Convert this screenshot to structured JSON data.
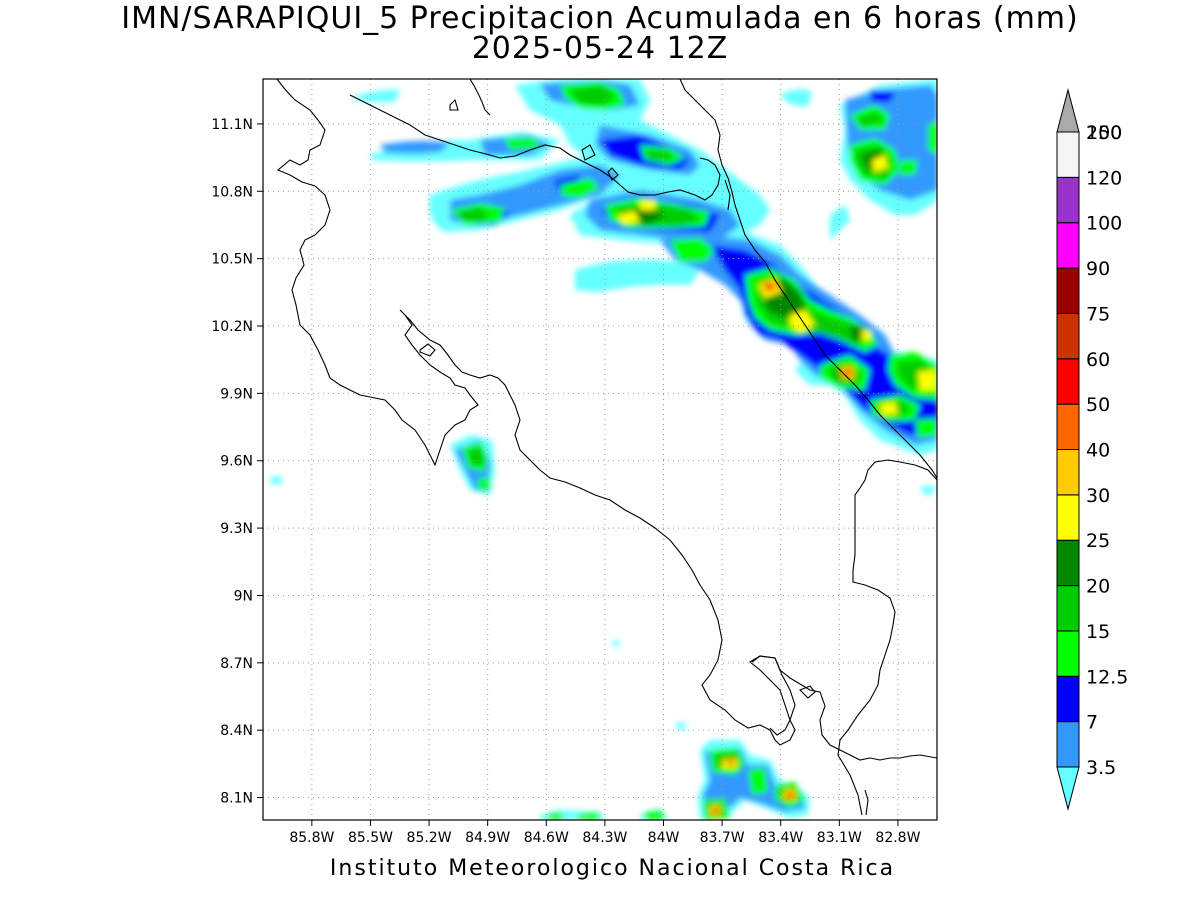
{
  "title": {
    "line1": "IMN/SARAPIQUI_5 Precipitacion Acumulada en 6 horas (mm)",
    "line2": "2025-05-24 12Z"
  },
  "footer": "Instituto Meteorologico Nacional Costa Rica",
  "map": {
    "lon_range": [
      -86.05,
      -82.6
    ],
    "lat_range": [
      8.0,
      11.3
    ],
    "grid": true,
    "lat_ticks": [
      {
        "value": 11.1,
        "label": "11.1N"
      },
      {
        "value": 10.8,
        "label": "10.8N"
      },
      {
        "value": 10.5,
        "label": "10.5N"
      },
      {
        "value": 10.2,
        "label": "10.2N"
      },
      {
        "value": 9.9,
        "label": "9.9N"
      },
      {
        "value": 9.6,
        "label": "9.6N"
      },
      {
        "value": 9.3,
        "label": "9.3N"
      },
      {
        "value": 9.0,
        "label": "9N"
      },
      {
        "value": 8.7,
        "label": "8.7N"
      },
      {
        "value": 8.4,
        "label": "8.4N"
      },
      {
        "value": 8.1,
        "label": "8.1N"
      }
    ],
    "lon_ticks": [
      {
        "value": -85.8,
        "label": "85.8W"
      },
      {
        "value": -85.5,
        "label": "85.5W"
      },
      {
        "value": -85.2,
        "label": "85.2W"
      },
      {
        "value": -84.9,
        "label": "84.9W"
      },
      {
        "value": -84.6,
        "label": "84.6W"
      },
      {
        "value": -84.3,
        "label": "84.3W"
      },
      {
        "value": -84.0,
        "label": "84W"
      },
      {
        "value": -83.7,
        "label": "83.7W"
      },
      {
        "value": -83.4,
        "label": "83.4W"
      },
      {
        "value": -83.1,
        "label": "83.1W"
      },
      {
        "value": -82.8,
        "label": "82.8W"
      }
    ]
  },
  "colorbar": {
    "bins": [
      {
        "label": "3.5",
        "color": "#66ffff"
      },
      {
        "label": "7",
        "color": "#3399ff"
      },
      {
        "label": "12.5",
        "color": "#0000ff"
      },
      {
        "label": "15",
        "color": "#00ff00"
      },
      {
        "label": "20",
        "color": "#00cc00"
      },
      {
        "label": "25",
        "color": "#008800"
      },
      {
        "label": "30",
        "color": "#ffff00"
      },
      {
        "label": "40",
        "color": "#ffcc00"
      },
      {
        "label": "50",
        "color": "#ff6600"
      },
      {
        "label": "60",
        "color": "#ff0000"
      },
      {
        "label": "75",
        "color": "#cc3300"
      },
      {
        "label": "90",
        "color": "#990000"
      },
      {
        "label": "100",
        "color": "#ff00ff"
      },
      {
        "label": "120",
        "color": "#9933cc"
      },
      {
        "label": "150",
        "color": "#f5f5f5"
      },
      {
        "label": "200",
        "color": "#aaaaaa"
      }
    ]
  },
  "rain_cells": [
    {
      "lon": -84.2,
      "lat": 11.25,
      "peak_mm": 22
    },
    {
      "lon": -84.35,
      "lat": 11.05,
      "peak_mm": 7
    },
    {
      "lon": -84.72,
      "lat": 11.03,
      "peak_mm": 20
    },
    {
      "lon": -83.95,
      "lat": 11.0,
      "peak_mm": 20
    },
    {
      "lon": -84.28,
      "lat": 10.85,
      "peak_mm": 20
    },
    {
      "lon": -84.85,
      "lat": 10.72,
      "peak_mm": 25
    },
    {
      "lon": -84.02,
      "lat": 10.7,
      "peak_mm": 35
    },
    {
      "lon": -83.78,
      "lat": 10.7,
      "peak_mm": 20
    },
    {
      "lon": -83.72,
      "lat": 10.55,
      "peak_mm": 22
    },
    {
      "lon": -83.42,
      "lat": 10.36,
      "peak_mm": 75
    },
    {
      "lon": -83.3,
      "lat": 10.25,
      "peak_mm": 45
    },
    {
      "lon": -83.05,
      "lat": 10.18,
      "peak_mm": 25
    },
    {
      "lon": -82.9,
      "lat": 10.14,
      "peak_mm": 30
    },
    {
      "lon": -82.95,
      "lat": 9.99,
      "peak_mm": 50
    },
    {
      "lon": -82.72,
      "lat": 9.96,
      "peak_mm": 35
    },
    {
      "lon": -82.82,
      "lat": 9.85,
      "peak_mm": 30
    },
    {
      "lon": -82.85,
      "lat": 11.1,
      "peak_mm": 20
    },
    {
      "lon": -82.8,
      "lat": 10.93,
      "peak_mm": 35
    },
    {
      "lon": -84.92,
      "lat": 9.63,
      "peak_mm": 25
    },
    {
      "lon": -83.63,
      "lat": 8.27,
      "peak_mm": 40
    },
    {
      "lon": -83.49,
      "lat": 8.18,
      "peak_mm": 25
    },
    {
      "lon": -83.3,
      "lat": 8.12,
      "peak_mm": 60
    },
    {
      "lon": -83.67,
      "lat": 8.04,
      "peak_mm": 60
    },
    {
      "lon": -84.0,
      "lat": 8.03,
      "peak_mm": 20
    },
    {
      "lon": -84.35,
      "lat": 8.02,
      "peak_mm": 20
    }
  ]
}
